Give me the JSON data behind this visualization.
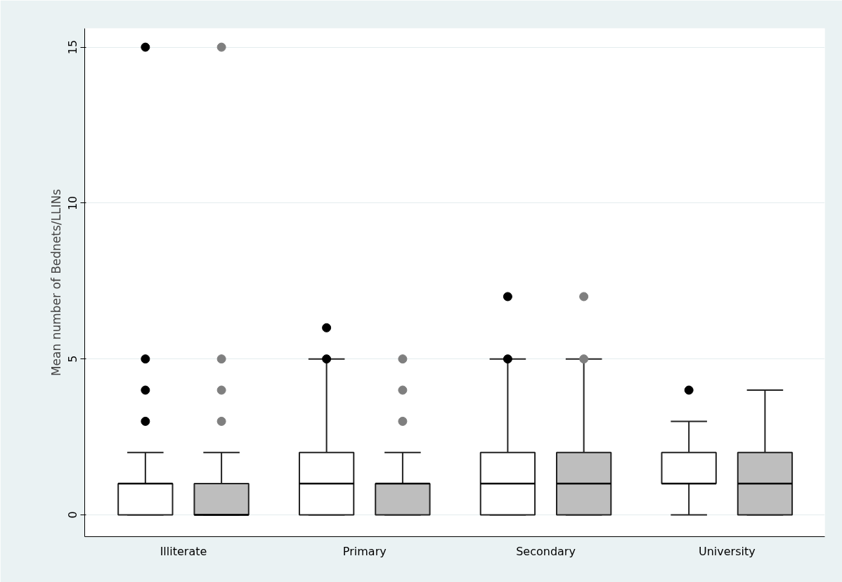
{
  "chart_data": {
    "type": "box",
    "ylabel": "Mean number of Bednets/LLINs",
    "categories": [
      "Illiterate",
      "Primary",
      "Secondary",
      "University"
    ],
    "series": [
      {
        "color": "#ffffff",
        "boxes": [
          {
            "low": 0,
            "q1": 0,
            "median": 1,
            "q3": 1,
            "high": 2,
            "outliers": [
              3,
              4,
              5,
              15
            ]
          },
          {
            "low": 0,
            "q1": 0,
            "median": 1,
            "q3": 2,
            "high": 5,
            "outliers": [
              5,
              6
            ]
          },
          {
            "low": 0,
            "q1": 0,
            "median": 1,
            "q3": 2,
            "high": 5,
            "outliers": [
              5,
              7
            ]
          },
          {
            "low": 0,
            "q1": 1,
            "median": 1,
            "q3": 2,
            "high": 3,
            "outliers": [
              4
            ]
          }
        ]
      },
      {
        "color": "#bebebe",
        "boxes": [
          {
            "low": 0,
            "q1": 0,
            "median": 0,
            "q3": 1,
            "high": 2,
            "outliers": [
              3,
              4,
              5,
              15
            ]
          },
          {
            "low": 0,
            "q1": 0,
            "median": 1,
            "q3": 1,
            "high": 2,
            "outliers": [
              3,
              4,
              5
            ]
          },
          {
            "low": 0,
            "q1": 0,
            "median": 1,
            "q3": 2,
            "high": 5,
            "outliers": [
              5,
              7
            ]
          },
          {
            "low": 0,
            "q1": 0,
            "median": 1,
            "q3": 2,
            "high": 4
          }
        ]
      }
    ],
    "ylim": [
      -0.7,
      15.6
    ],
    "yticks": [
      0,
      5,
      10,
      15
    ],
    "grid": "y",
    "marker": "circle"
  }
}
